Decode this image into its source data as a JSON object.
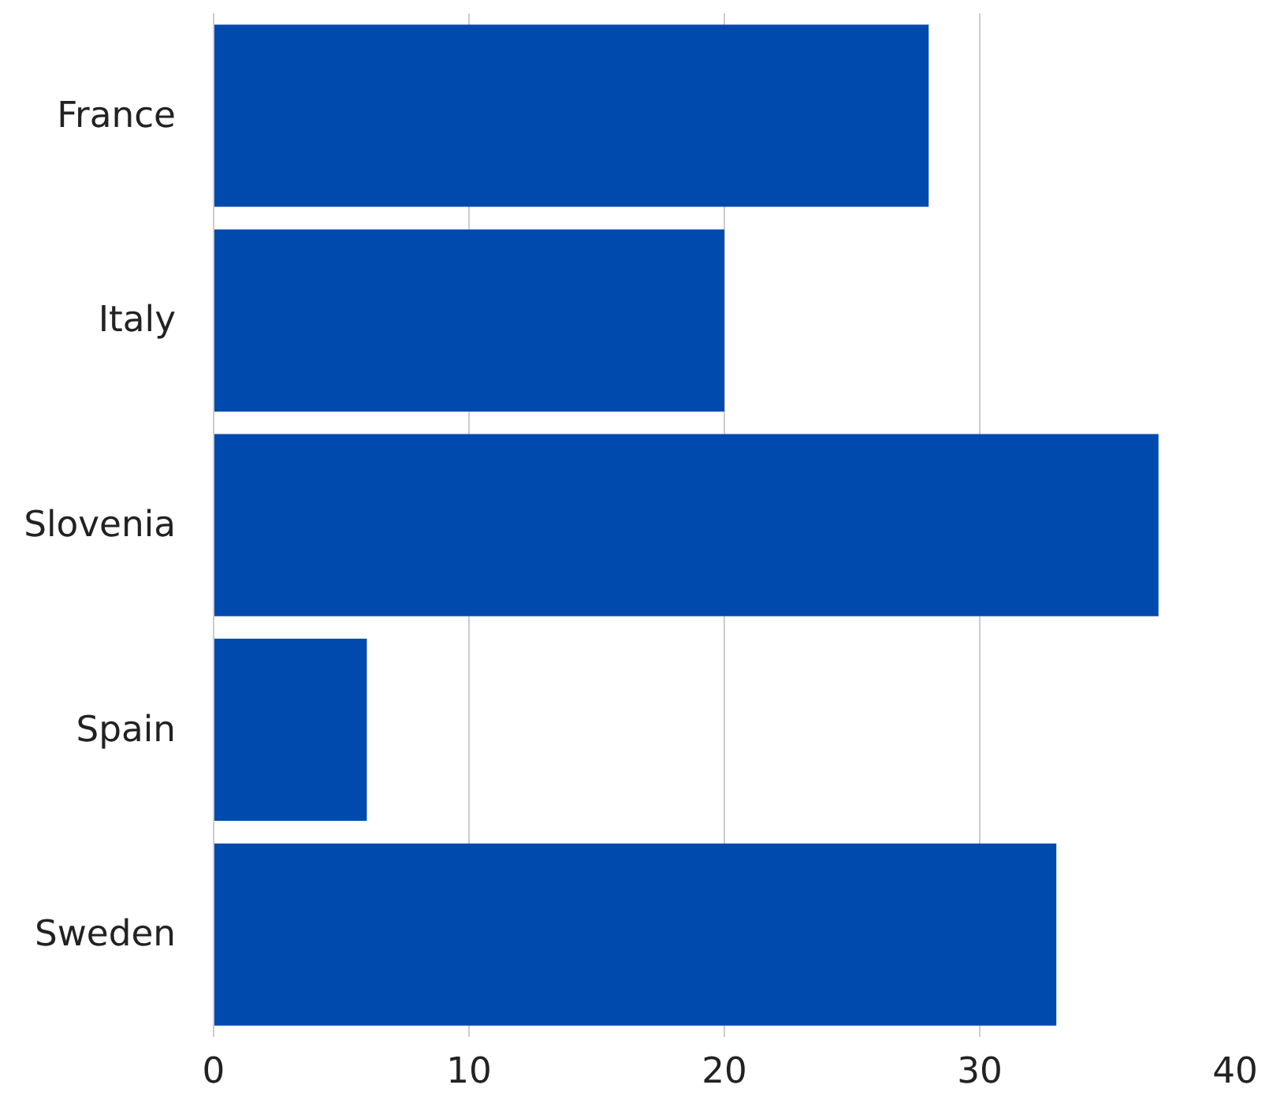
{
  "chart_data": {
    "type": "bar",
    "orientation": "horizontal",
    "categories": [
      "France",
      "Italy",
      "Slovenia",
      "Spain",
      "Sweden"
    ],
    "values": [
      28,
      20,
      37,
      6,
      33
    ],
    "color": "#004aad",
    "xlim": [
      0,
      40
    ],
    "xticks": [
      0,
      10,
      20,
      30,
      40
    ],
    "grid": "x"
  }
}
